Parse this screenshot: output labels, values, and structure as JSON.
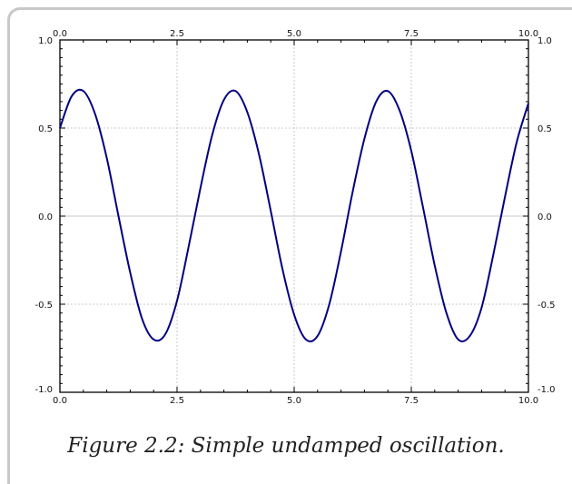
{
  "caption": "Figure 2.2: Simple undamped oscillation.",
  "colors": {
    "line": "#000080",
    "grid": "#bbbbbb",
    "zero_line": "#c8c8c8",
    "frame": "#c8c8c8"
  },
  "chart_data": {
    "type": "line",
    "title": "",
    "xlabel": "",
    "ylabel": "",
    "xlim": [
      0,
      10
    ],
    "ylim": [
      -1,
      1
    ],
    "x_ticks": [
      "0.0",
      "2.5",
      "5.0",
      "7.5",
      "10.0"
    ],
    "y_ticks": [
      "-1.0",
      "-0.5",
      "0.0",
      "0.5",
      "1.0"
    ],
    "grid": true,
    "mirrored_axes": true,
    "series": [
      {
        "x": [
          0,
          0.25,
          0.5,
          0.75,
          1.0,
          1.25,
          1.5,
          1.75,
          2.0,
          2.25,
          2.5,
          2.75,
          3.0,
          3.25,
          3.5,
          3.75,
          4.0,
          4.25,
          4.5,
          4.75,
          5.0,
          5.25,
          5.5,
          5.75,
          6.0,
          6.25,
          6.5,
          6.75,
          7.0,
          7.25,
          7.5,
          7.75,
          8.0,
          8.25,
          8.5,
          8.75,
          9.0,
          9.25,
          9.5,
          9.75,
          10.0
        ],
        "y": [
          0.5,
          0.68,
          0.71,
          0.58,
          0.33,
          0.0,
          -0.32,
          -0.58,
          -0.7,
          -0.67,
          -0.48,
          -0.17,
          0.16,
          0.46,
          0.66,
          0.71,
          0.59,
          0.35,
          0.03,
          -0.3,
          -0.56,
          -0.7,
          -0.68,
          -0.5,
          -0.2,
          0.14,
          0.44,
          0.65,
          0.71,
          0.6,
          0.37,
          0.05,
          -0.28,
          -0.55,
          -0.7,
          -0.68,
          -0.52,
          -0.22,
          0.11,
          0.42,
          0.64
        ]
      }
    ]
  }
}
